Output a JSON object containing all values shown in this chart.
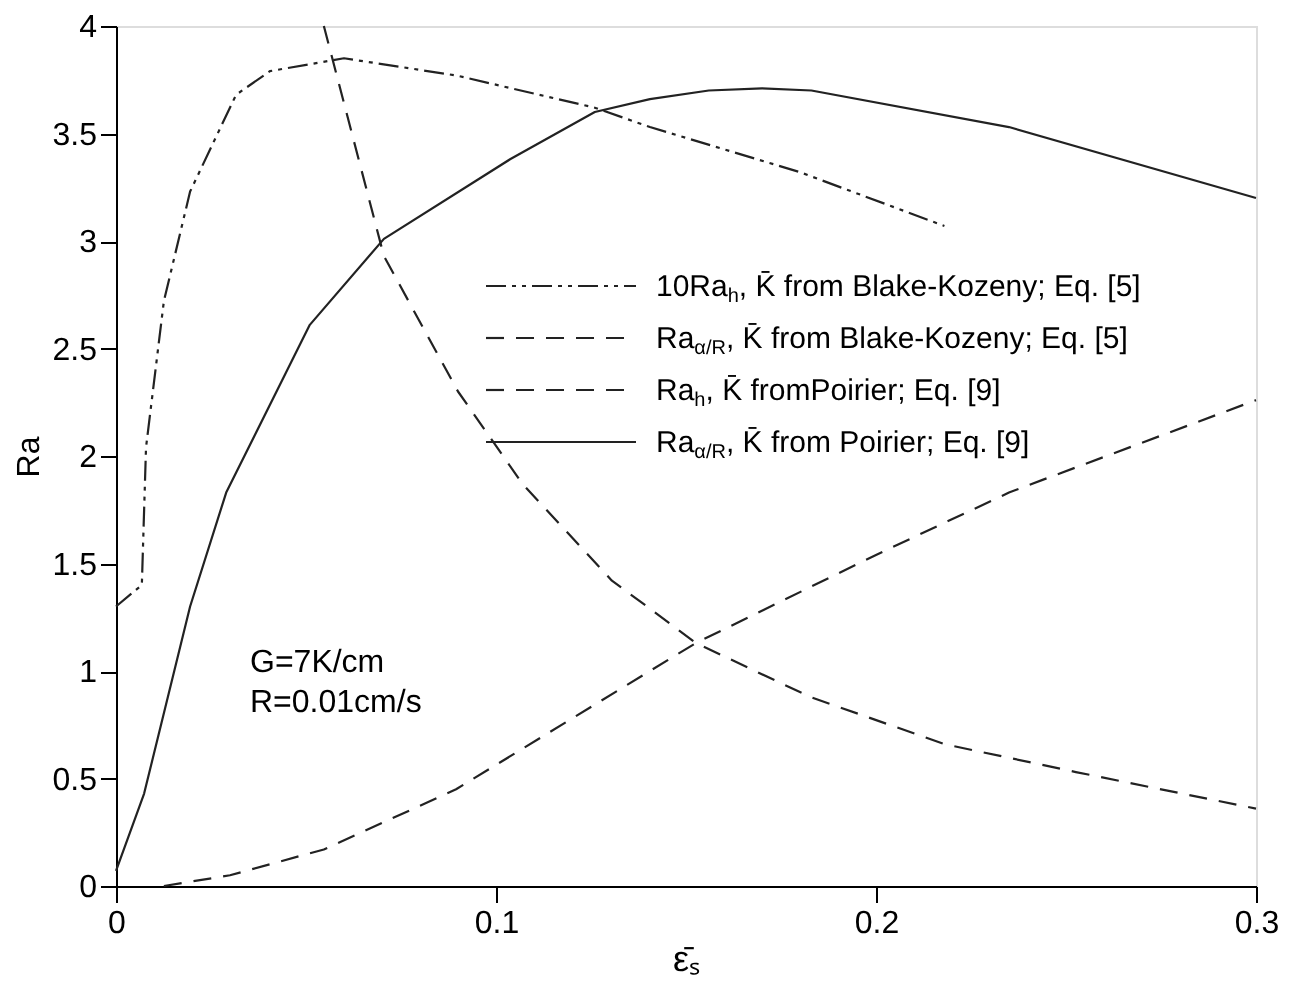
{
  "chart_data": {
    "type": "line",
    "xlabel": "ε̄ₛ",
    "ylabel": "Ra",
    "xlim": [
      0,
      0.3
    ],
    "xticks": [
      0,
      0.1,
      0.2,
      0.3
    ],
    "ylim": [
      0,
      4
    ],
    "yticks": [
      0,
      0.5,
      1,
      1.5,
      2,
      2.5,
      3,
      3.5,
      4
    ],
    "grid": false,
    "legend": "right",
    "marker": "none",
    "annotations": [
      "G=7K/cm",
      "R=0.01cm/s"
    ],
    "series": [
      {
        "name": "10Ra$_{h}$, K̄ from Blake-Kozeny; Eq. [5]",
        "color": "#222222",
        "line_style": "dotted",
        "x": [
          0,
          0.0068,
          0.0079,
          0.0126,
          0.0195,
          0.0316,
          0.0405,
          0.06,
          0.0895,
          0.126,
          0.1405,
          0.18,
          0.218
        ],
        "values": [
          1.3,
          1.4,
          2.04,
          2.72,
          3.23,
          3.68,
          3.79,
          3.85,
          3.77,
          3.62,
          3.53,
          3.32,
          3.07
        ]
      },
      {
        "name": "Ra$_{α/R}$, K̄ from Blake-Kozeny; Eq. [5]",
        "color": "#222222",
        "line_style": "dashed",
        "x": [
          0.0547,
          0.0705,
          0.09,
          0.107,
          0.1305,
          0.1405,
          0.1526,
          0.1826,
          0.218,
          0.2526,
          0.3
        ],
        "values": [
          4,
          2.93,
          2.3,
          1.87,
          1.42,
          1.29,
          1.13,
          0.88,
          0.66,
          0.53,
          0.36
        ]
      },
      {
        "name": "Ra$_{h}$,  K̄ fromPoirier; Eq. [9]",
        "color": "#222222",
        "line_style": "dashed",
        "x": [
          0.0126,
          0.03,
          0.0547,
          0.0895,
          0.1405,
          0.1526,
          0.2,
          0.235,
          0.244,
          0.3
        ],
        "values": [
          0,
          0.05,
          0.17,
          0.45,
          1.0,
          1.13,
          1.54,
          1.83,
          1.89,
          2.26
        ]
      },
      {
        "name": "Ra$_{α/R}$, K̄ from Poirier; Eq. [9]",
        "color": "#222222",
        "line_style": "solid",
        "x": [
          0,
          0.0074,
          0.0195,
          0.029,
          0.051,
          0.0705,
          0.1037,
          0.126,
          0.1405,
          0.156,
          0.17,
          0.183,
          0.235,
          0.3
        ],
        "values": [
          0.07,
          0.43,
          1.3,
          1.83,
          2.61,
          3.01,
          3.38,
          3.6,
          3.66,
          3.7,
          3.71,
          3.7,
          3.53,
          3.2
        ]
      }
    ]
  }
}
